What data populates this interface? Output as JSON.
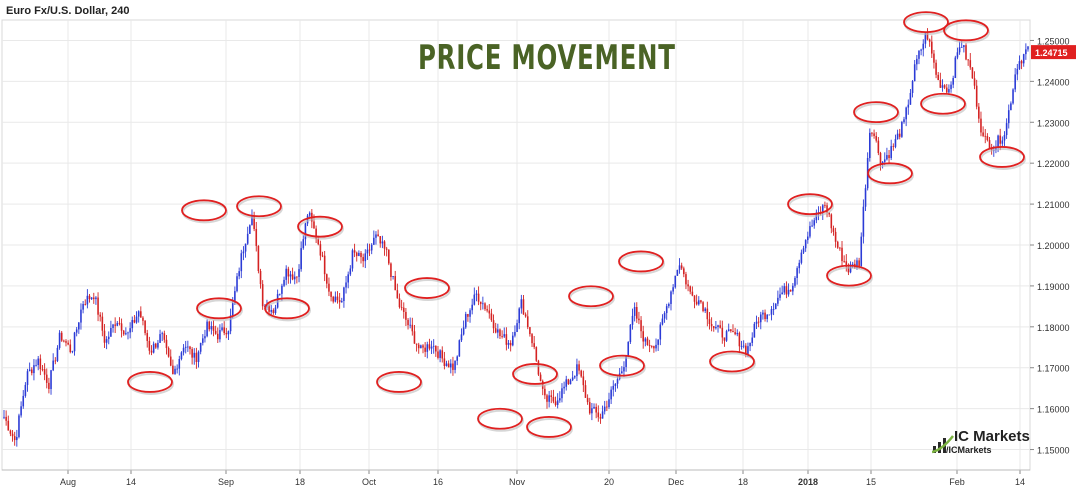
{
  "chart_data": {
    "type": "candlestick",
    "title": "Euro Fx/U.S. Dollar, 240",
    "headline": "PRICE MOVEMENT",
    "last_price": "1.24715",
    "ylim": [
      1.145,
      1.255
    ],
    "y_ticks": [
      "1.15000",
      "1.16000",
      "1.17000",
      "1.18000",
      "1.19000",
      "1.20000",
      "1.21000",
      "1.22000",
      "1.23000",
      "1.24000",
      "1.25000"
    ],
    "x_ticks": [
      "Aug",
      "14",
      "Sep",
      "18",
      "Oct",
      "16",
      "Nov",
      "20",
      "Dec",
      "18",
      "2018",
      "15",
      "Feb",
      "14"
    ],
    "price_path": [
      1.158,
      1.152,
      1.168,
      1.172,
      1.166,
      1.178,
      1.174,
      1.186,
      1.188,
      1.176,
      1.182,
      1.178,
      1.184,
      1.174,
      1.178,
      1.168,
      1.176,
      1.172,
      1.18,
      1.178,
      1.18,
      1.196,
      1.208,
      1.186,
      1.184,
      1.194,
      1.192,
      1.208,
      1.2,
      1.188,
      1.186,
      1.198,
      1.196,
      1.202,
      1.198,
      1.186,
      1.18,
      1.174,
      1.176,
      1.172,
      1.17,
      1.182,
      1.188,
      1.184,
      1.178,
      1.176,
      1.186,
      1.176,
      1.162,
      1.162,
      1.166,
      1.17,
      1.16,
      1.158,
      1.164,
      1.17,
      1.184,
      1.176,
      1.176,
      1.186,
      1.196,
      1.188,
      1.186,
      1.18,
      1.178,
      1.178,
      1.174,
      1.182,
      1.184,
      1.188,
      1.19,
      1.2,
      1.206,
      1.21,
      1.2,
      1.194,
      1.196,
      1.23,
      1.22,
      1.224,
      1.23,
      1.244,
      1.252,
      1.24,
      1.238,
      1.25,
      1.242,
      1.226,
      1.224,
      1.228,
      1.244,
      1.248
    ],
    "swing_circles": [
      {
        "type": "low",
        "y": 1.1675
      },
      {
        "type": "high",
        "y": 1.2075
      },
      {
        "type": "low",
        "y": 1.1855
      },
      {
        "type": "high",
        "y": 1.2085
      },
      {
        "type": "low",
        "y": 1.1855
      },
      {
        "type": "high",
        "y": 1.2035
      },
      {
        "type": "high",
        "y": 1.1885
      },
      {
        "type": "low",
        "y": 1.1675
      },
      {
        "type": "low",
        "y": 1.1585
      },
      {
        "type": "high",
        "y": 1.1675
      },
      {
        "type": "low",
        "y": 1.1565
      },
      {
        "type": "high",
        "y": 1.1865
      },
      {
        "type": "low",
        "y": 1.1715
      },
      {
        "type": "high",
        "y": 1.195
      },
      {
        "type": "low",
        "y": 1.1725
      },
      {
        "type": "high",
        "y": 1.209
      },
      {
        "type": "low",
        "y": 1.1935
      },
      {
        "type": "high",
        "y": 1.2315
      },
      {
        "type": "low",
        "y": 1.2185
      },
      {
        "type": "high",
        "y": 1.2535
      },
      {
        "type": "low",
        "y": 1.2355
      },
      {
        "type": "high",
        "y": 1.2515
      },
      {
        "type": "low",
        "y": 1.2225
      }
    ],
    "colors": {
      "up": "#2b3bd6",
      "down": "#d42222",
      "circle": "#e02020",
      "grid": "#e9e9e9",
      "headline": "#4a6325",
      "last_price_bg": "#e02020"
    }
  },
  "branding": {
    "name": "ICMarkets",
    "name_display": "IC Markets",
    "handle": "/ICMarkets"
  }
}
